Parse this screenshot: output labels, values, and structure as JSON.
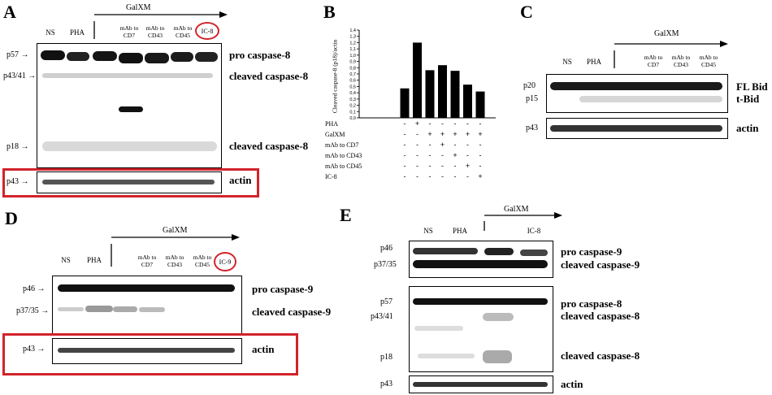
{
  "panelA": {
    "letter": "A",
    "lanes": [
      "NS",
      "PHA",
      "mAb to CD7",
      "mAb to CD43",
      "mAb to CD45",
      "IC-8"
    ],
    "galxm": "GalXM",
    "markers": {
      "p57": "p57 →",
      "p43_41": "p43/41 →",
      "p18": "p18 →",
      "p43": "p43 →"
    },
    "labels": {
      "pro": "pro caspase-8",
      "cleaved1": "cleaved caspase-8",
      "cleaved2": "cleaved caspase-8",
      "actin": "actin"
    }
  },
  "panelB": {
    "letter": "B",
    "ylabel": "Cleaved caspase-8 (p18)/actin",
    "rows": [
      {
        "label": "PHA",
        "signs": [
          "-",
          "+",
          "-",
          "-",
          "-",
          "-",
          "-"
        ]
      },
      {
        "label": "GalXM",
        "signs": [
          "-",
          "-",
          "+",
          "+",
          "+",
          "+",
          "+"
        ]
      },
      {
        "label": "mAb to CD7",
        "signs": [
          "-",
          "-",
          "-",
          "+",
          "-",
          "-",
          "-"
        ]
      },
      {
        "label": "mAb to CD43",
        "signs": [
          "-",
          "-",
          "-",
          "-",
          "+",
          "-",
          "-"
        ]
      },
      {
        "label": "mAb to CD45",
        "signs": [
          "-",
          "-",
          "-",
          "-",
          "-",
          "+",
          "-"
        ]
      },
      {
        "label": "IC-8",
        "signs": [
          "-",
          "-",
          "-",
          "-",
          "-",
          "-",
          "+"
        ]
      }
    ]
  },
  "panelC": {
    "letter": "C",
    "lanes": [
      "NS",
      "PHA",
      "mAb to CD7",
      "mAb to CD43",
      "mAb to CD45"
    ],
    "galxm": "GalXM",
    "markers": {
      "p20": "p20",
      "p15": "p15",
      "p43": "p43"
    },
    "labels": {
      "flbid": "FL Bid",
      "tbid": "t-Bid",
      "actin": "actin"
    }
  },
  "panelD": {
    "letter": "D",
    "lanes": [
      "NS",
      "PHA",
      "mAb to CD7",
      "mAb to CD43",
      "mAb to CD45",
      "IC-9"
    ],
    "galxm": "GalXM",
    "markers": {
      "p46": "p46 →",
      "p37_35": "p37/35 →",
      "p43": "p43 →"
    },
    "labels": {
      "pro": "pro caspase-9",
      "cleaved": "cleaved caspase-9",
      "actin": "actin"
    }
  },
  "panelE": {
    "letter": "E",
    "lanes": [
      "NS",
      "PHA",
      "IC-8"
    ],
    "galxm": "GalXM",
    "markers": {
      "p46": "p46",
      "p37_35": "p37/35",
      "p57": "p57",
      "p43_41": "p43/41",
      "p18": "p18",
      "p43": "p43"
    },
    "labels": {
      "pro9": "pro caspase-9",
      "cleaved9": "cleaved caspase-9",
      "pro8": "pro caspase-8",
      "cleaved8a": "cleaved caspase-8",
      "cleaved8b": "cleaved caspase-8",
      "actin": "actin"
    }
  },
  "chart_data": {
    "type": "bar",
    "title": "",
    "xlabel": "",
    "ylabel": "Cleaved caspase-8 (p18)/actin",
    "ylim": [
      0,
      1.4
    ],
    "yticks": [
      "0,0",
      "0,2",
      "0,4",
      "0,6",
      "0,8",
      "1,0",
      "1,2",
      "1,4"
    ],
    "ytick_values": [
      0,
      0.2,
      0.4,
      0.6,
      0.8,
      1.0,
      1.2,
      1.4
    ],
    "ytick_minor": [
      0.1,
      0.3,
      0.5,
      0.7,
      0.9,
      1.1,
      1.3
    ],
    "ytick_minor_labels": [
      "0,1",
      "0,3",
      "0,5",
      "0,7",
      "0,9",
      "1,1",
      "1,3"
    ],
    "categories": [
      "NS",
      "PHA",
      "GalXM",
      "GalXM+CD7",
      "GalXM+CD43",
      "GalXM+CD45",
      "GalXM+IC-8"
    ],
    "values": [
      0.47,
      1.2,
      0.76,
      0.84,
      0.75,
      0.53,
      0.42
    ]
  }
}
